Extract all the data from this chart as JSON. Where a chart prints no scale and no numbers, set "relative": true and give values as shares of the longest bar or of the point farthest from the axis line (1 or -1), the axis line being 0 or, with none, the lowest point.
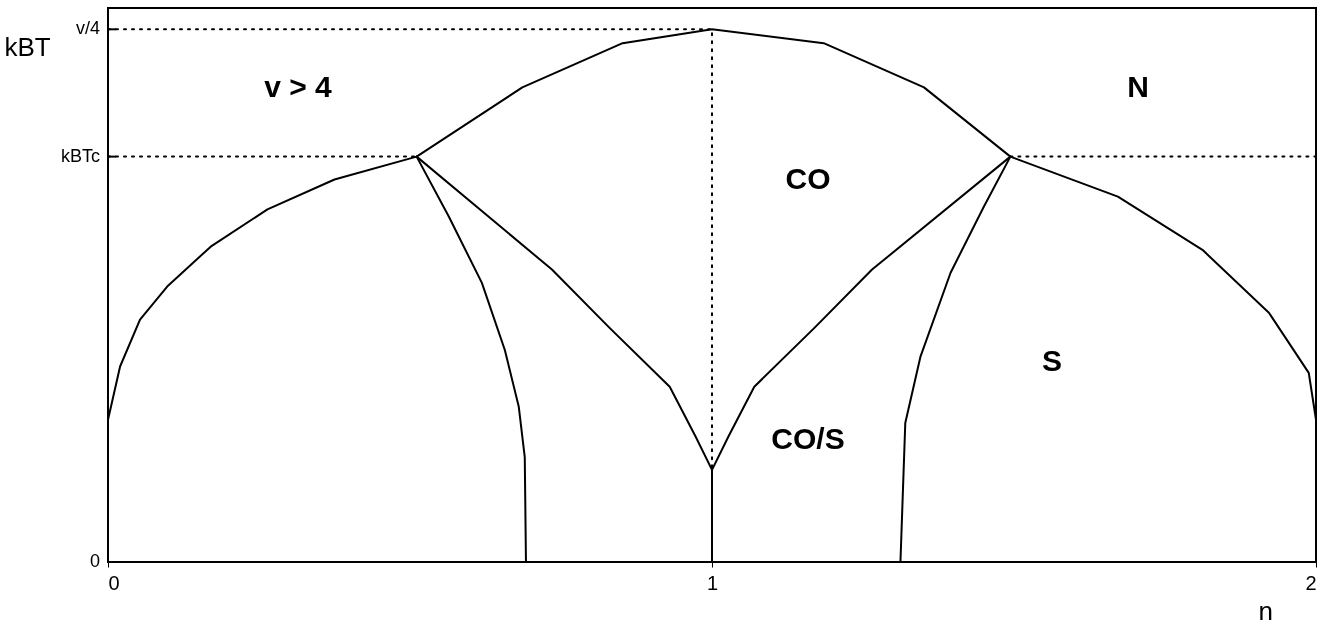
{
  "chart_data": {
    "type": "line",
    "relative": true,
    "xlabel": "n",
    "ylabel": "kBT",
    "xlim": [
      0,
      2
    ],
    "xticks": [
      0,
      1,
      2
    ],
    "ref_lines": [
      {
        "axis": "y",
        "value": 0.761,
        "label": "kBTc"
      },
      {
        "axis": "y",
        "value": 1.0,
        "label": "v/4"
      }
    ],
    "grid": false,
    "marker": "none",
    "series": [
      {
        "color": "#000000",
        "line_style": "solid",
        "x": [
          0,
          0.02,
          0.053,
          0.098,
          0.17,
          0.264,
          0.375,
          0.511,
          0.686,
          0.852,
          1.0,
          1.185,
          1.351,
          1.494,
          1.672,
          1.812,
          1.922,
          1.988,
          2.0
        ],
        "values": [
          0.267,
          0.367,
          0.455,
          0.517,
          0.592,
          0.662,
          0.718,
          0.761,
          0.891,
          0.974,
          1.0,
          0.974,
          0.891,
          0.761,
          0.686,
          0.586,
          0.468,
          0.355,
          0.267
        ]
      },
      {
        "color": "#000000",
        "line_style": "solid",
        "x": [
          0.511,
          0.564,
          0.619,
          0.657,
          0.68,
          0.69,
          0.692
        ],
        "values": [
          0.761,
          0.649,
          0.524,
          0.398,
          0.292,
          0.197,
          0
        ]
      },
      {
        "color": "#000000",
        "line_style": "solid",
        "x": [
          0.511,
          0.735,
          0.83,
          0.93,
          0.973,
          1.0,
          1.027,
          1.07,
          1.17,
          1.265,
          1.494
        ],
        "values": [
          0.761,
          0.549,
          0.44,
          0.329,
          0.235,
          0.173,
          0.235,
          0.329,
          0.44,
          0.549,
          0.761
        ]
      },
      {
        "color": "#000000",
        "line_style": "solid",
        "x": [
          1.0,
          1.0
        ],
        "values": [
          0.173,
          0
        ]
      },
      {
        "color": "#000000",
        "line_style": "solid",
        "x": [
          1.494,
          1.45,
          1.395,
          1.345,
          1.32,
          1.312
        ],
        "values": [
          0.761,
          0.667,
          0.543,
          0.385,
          0.261,
          0
        ]
      },
      {
        "color": "#000000",
        "line_style": "dotted",
        "x": [
          0,
          1.0,
          1.0
        ],
        "values": [
          1.0,
          1.0,
          0.173
        ]
      },
      {
        "color": "#000000",
        "line_style": "dotted",
        "x": [
          0,
          0.511
        ],
        "values": [
          0.761,
          0.761
        ]
      },
      {
        "color": "#000000",
        "line_style": "dotted",
        "x": [
          1.494,
          2.0
        ],
        "values": [
          0.761,
          0.761
        ]
      }
    ],
    "annotations": [
      "0",
      "v > 4",
      "N",
      "CO",
      "CO/S",
      "S"
    ]
  }
}
